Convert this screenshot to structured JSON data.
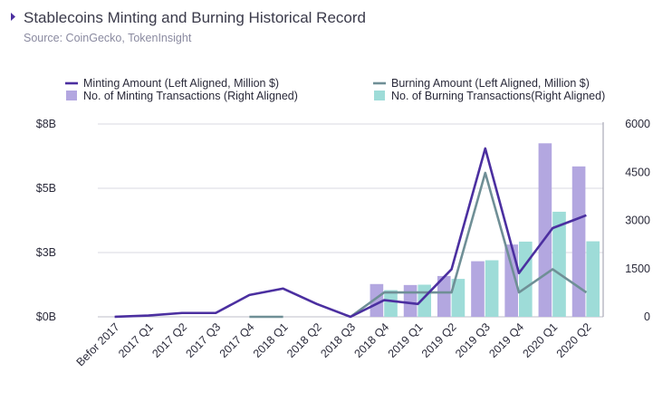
{
  "header": {
    "title": "Stablecoins Minting and Burning Historical Record",
    "subtitle": "Source: CoinGecko, TokenInsight",
    "title_marker_icon": "triangle-right-icon"
  },
  "chart_data": {
    "type": "bar",
    "title": "Stablecoins Minting and Burning Historical Record",
    "categories": [
      "Befor 2017",
      "2017 Q1",
      "2017 Q2",
      "2017 Q3",
      "2017 Q4",
      "2018 Q1",
      "2018 Q2",
      "2018 Q3",
      "2018 Q4",
      "2019 Q1",
      "2019 Q2",
      "2019 Q3",
      "2019 Q4",
      "2020 Q1",
      "2020 Q2"
    ],
    "left_axis": {
      "ticks": [
        "$0B",
        "$3B",
        "$5B",
        "$8B"
      ],
      "tick_values": [
        0,
        2.5,
        5,
        7.5
      ],
      "ylim": [
        0,
        7.5
      ]
    },
    "right_axis": {
      "ticks": [
        "0",
        "1500",
        "3000",
        "4500",
        "6000"
      ],
      "tick_values": [
        0,
        1500,
        3000,
        4500,
        6000
      ],
      "ylim": [
        0,
        6000
      ]
    },
    "grid": true,
    "legend_position": "top",
    "series": [
      {
        "name": "Minting Amount (Left Aligned, Million $)",
        "type": "line",
        "axis": "left",
        "color": "#4b2fa0",
        "values": [
          0,
          0.05,
          0.15,
          0.15,
          0.85,
          1.1,
          0.5,
          0,
          0.65,
          0.5,
          1.85,
          6.55,
          1.7,
          3.45,
          3.95
        ]
      },
      {
        "name": "Burning Amount (Left Aligned, Million $)",
        "type": "line",
        "axis": "left",
        "color": "#6f8f96",
        "values": [
          null,
          null,
          null,
          null,
          0,
          0,
          null,
          0,
          0.95,
          0.95,
          0.95,
          5.6,
          0.95,
          1.85,
          0.95
        ]
      },
      {
        "name": "No. of Minting Transactions (Right Aligned)",
        "type": "bar",
        "axis": "right",
        "color": "#b3a7e0",
        "values": [
          0,
          0,
          0,
          0,
          0,
          0,
          0,
          0,
          1020,
          990,
          1270,
          1730,
          2250,
          5400,
          4680
        ]
      },
      {
        "name": "No. of Burning Transactions(Right Aligned)",
        "type": "bar",
        "axis": "right",
        "color": "#9edcd8",
        "values": [
          0,
          0,
          0,
          0,
          0,
          0,
          0,
          0,
          830,
          1000,
          1180,
          1760,
          2340,
          3270,
          2350
        ]
      }
    ]
  }
}
